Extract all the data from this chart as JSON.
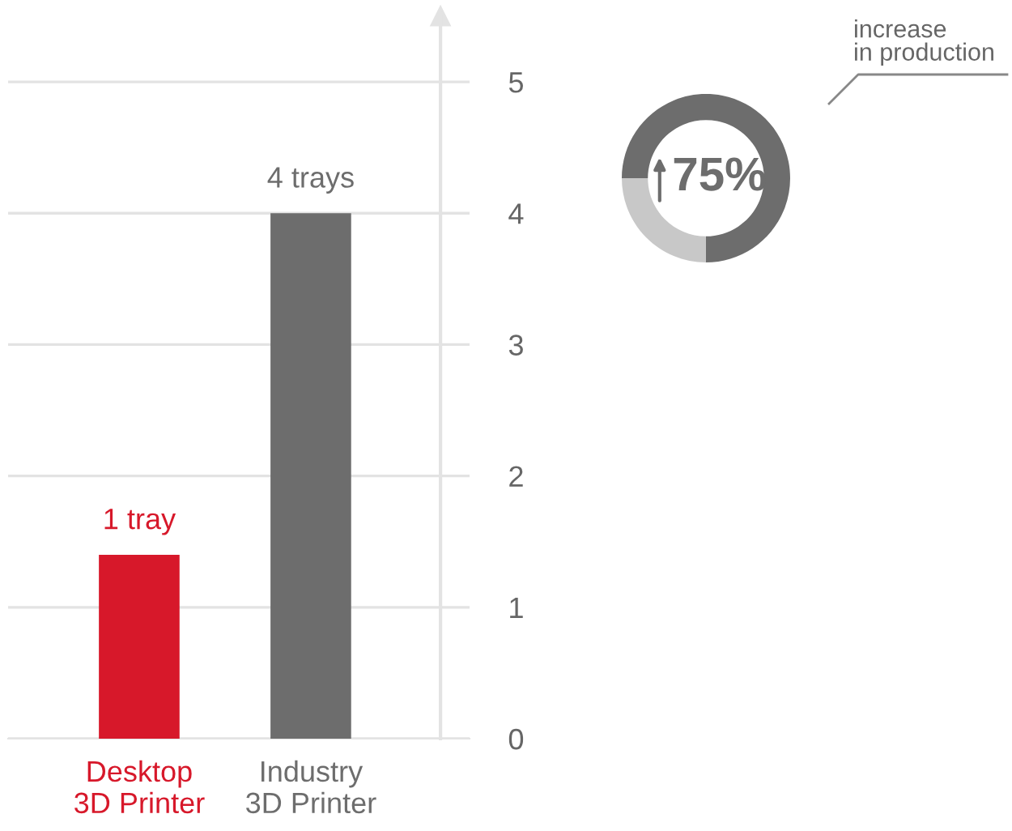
{
  "chart_data": [
    {
      "type": "bar",
      "categories": [
        "Desktop\n3D Printer",
        "Industry\n3D Printer"
      ],
      "values": [
        1.4,
        4
      ],
      "colors": [
        "#d7182a",
        "#6d6d6d"
      ],
      "value_labels": [
        "1 tray",
        "4 trays"
      ],
      "ylim": [
        0,
        5.5
      ],
      "yticks": [
        0,
        1,
        2,
        3,
        4,
        5
      ],
      "grid": "y",
      "tick_labels": "y"
    },
    {
      "type": "donut",
      "categories": [
        null,
        null
      ],
      "values": [
        75,
        25
      ],
      "colors": [
        "#6d6d6d",
        "#c8c8c8"
      ],
      "value_labels": [
        "75%",
        null
      ],
      "annotations": [
        "increase\nin production"
      ]
    }
  ]
}
